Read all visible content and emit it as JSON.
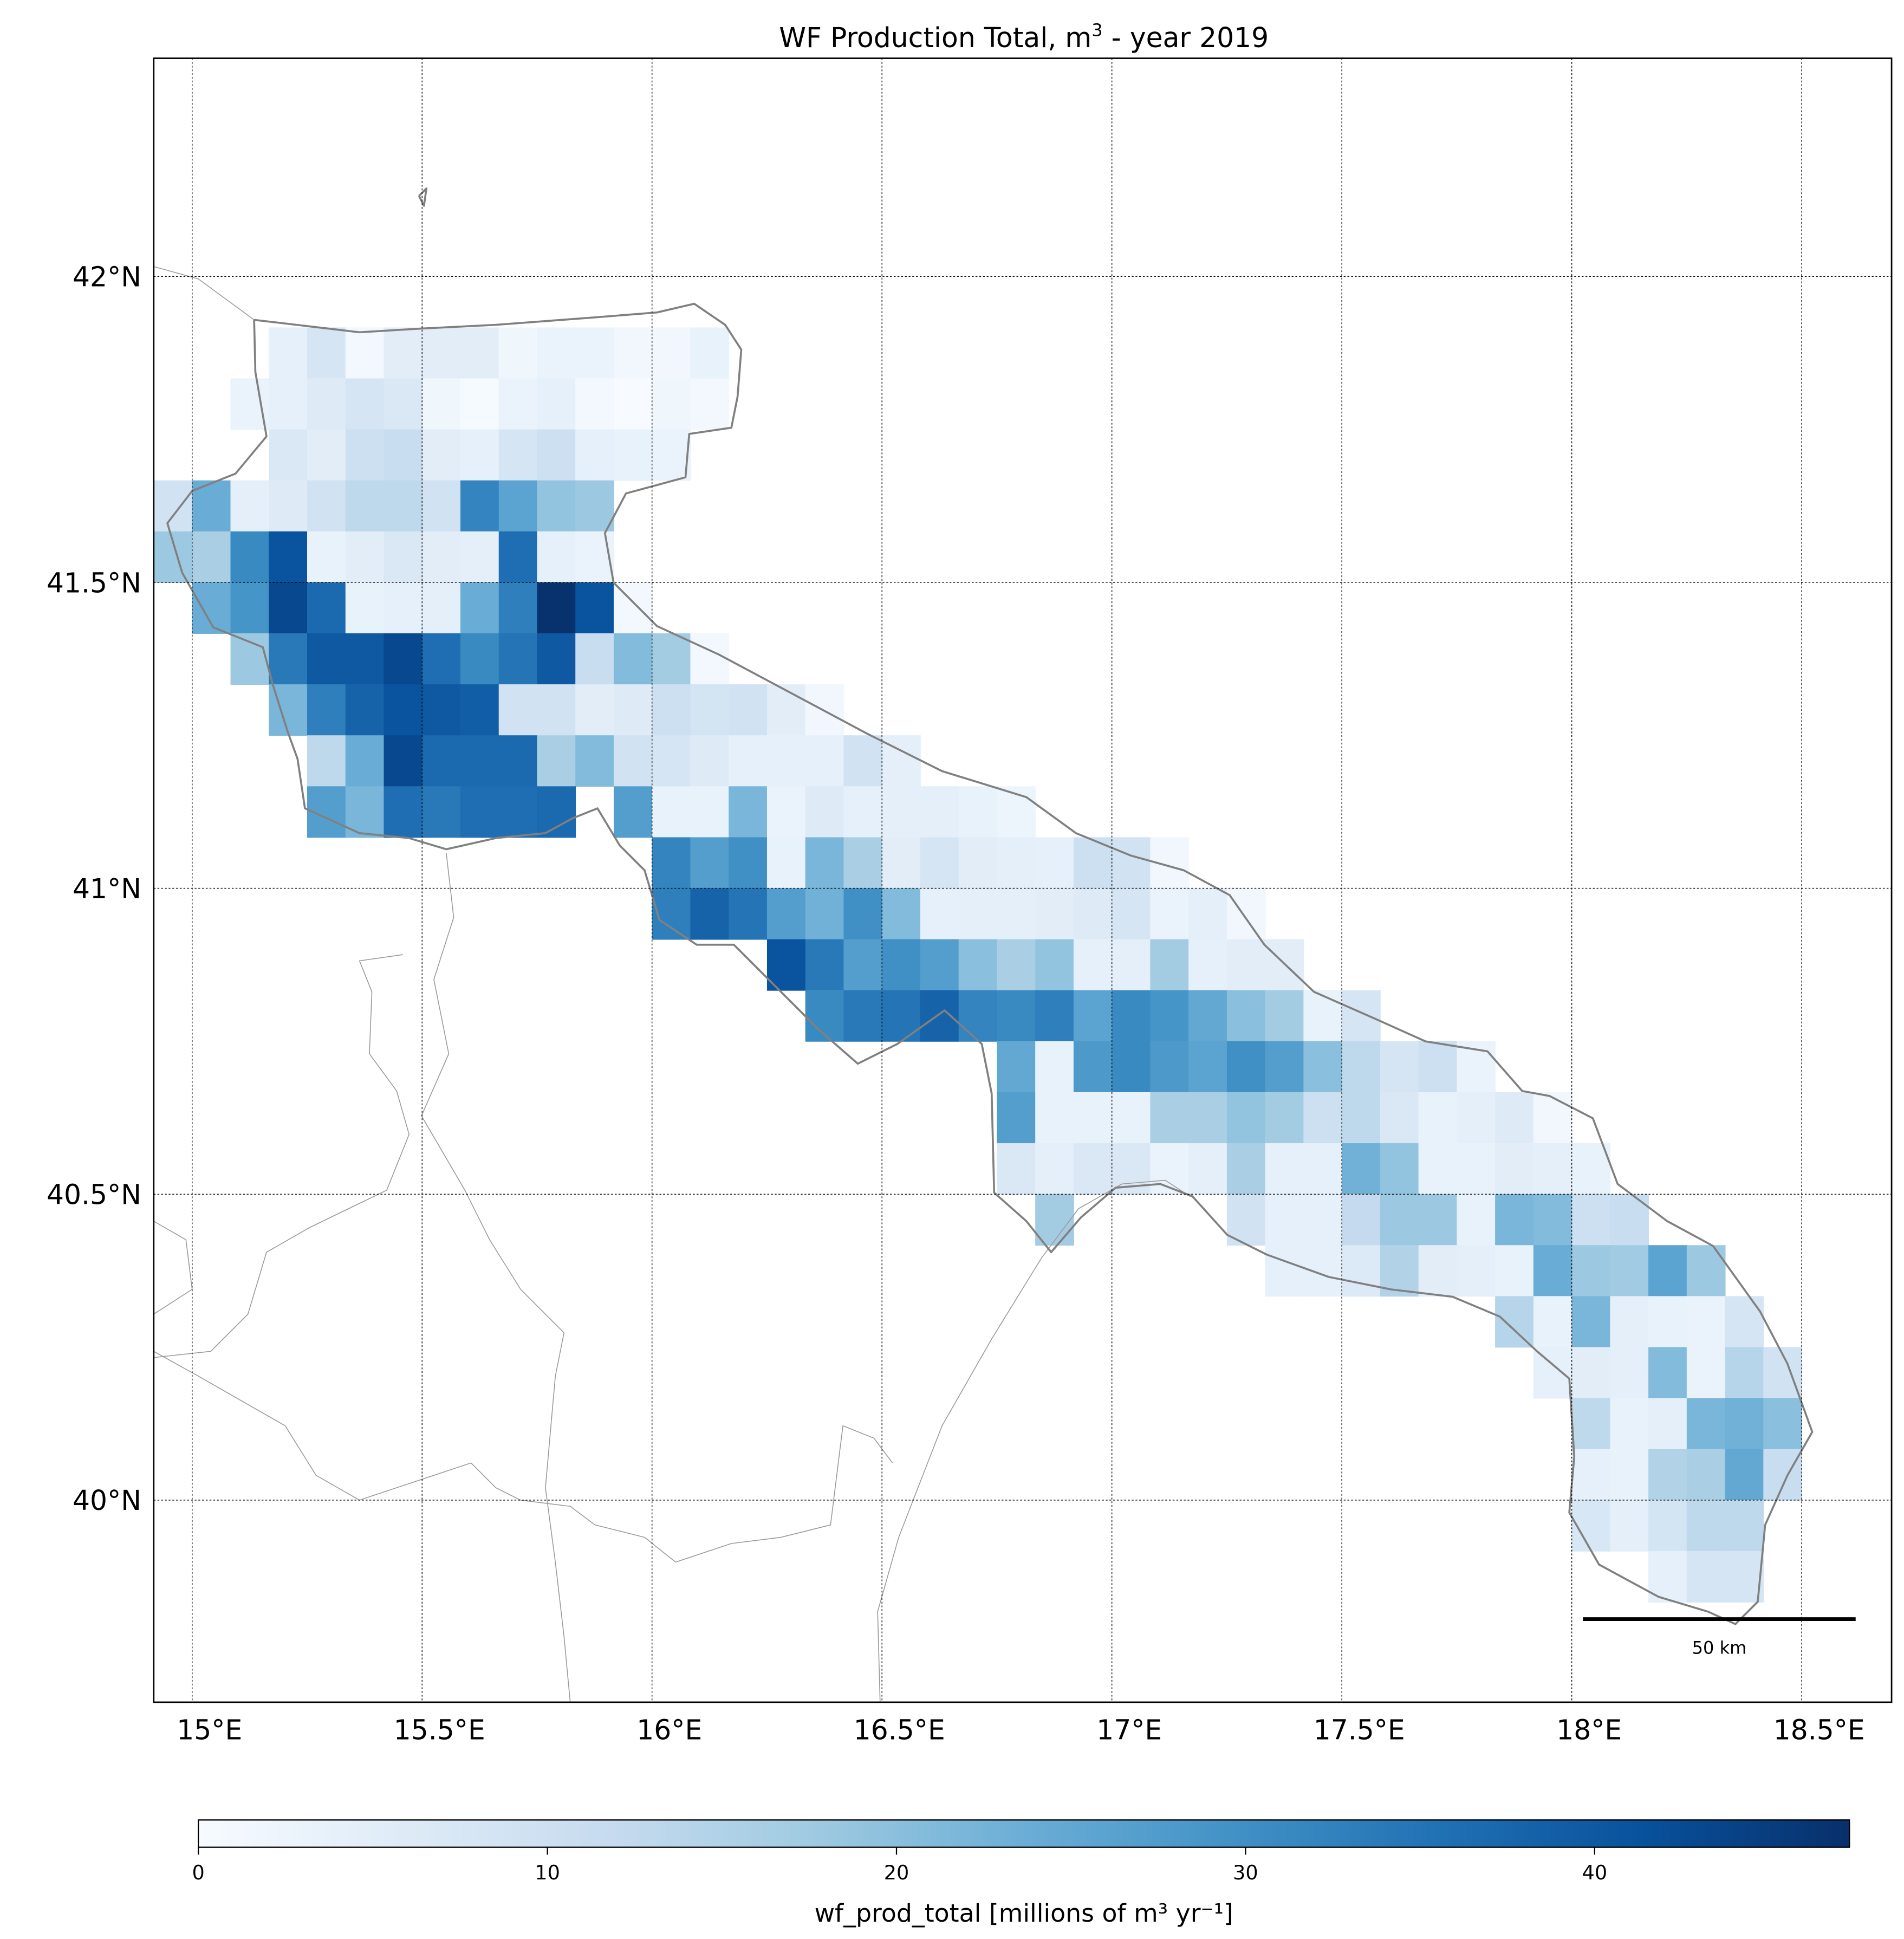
{
  "title": {
    "main": "WF Production Total, m",
    "sup": "3",
    "rest": " - year 2019"
  },
  "x_ticks": [
    {
      "lon": 15.0,
      "label": "15°E"
    },
    {
      "lon": 15.5,
      "label": "15.5°E"
    },
    {
      "lon": 16.0,
      "label": "16°E"
    },
    {
      "lon": 16.5,
      "label": "16.5°E"
    },
    {
      "lon": 17.0,
      "label": "17°E"
    },
    {
      "lon": 17.5,
      "label": "17.5°E"
    },
    {
      "lon": 18.0,
      "label": "18°E"
    },
    {
      "lon": 18.5,
      "label": "18.5°E"
    }
  ],
  "y_ticks": [
    {
      "lat": 42.0,
      "label": "42°N"
    },
    {
      "lat": 41.5,
      "label": "41.5°N"
    },
    {
      "lat": 41.0,
      "label": "41°N"
    },
    {
      "lat": 40.5,
      "label": "40.5°N"
    },
    {
      "lat": 40.0,
      "label": "40°N"
    }
  ],
  "scale_bar": {
    "label": "50 km"
  },
  "colorbar": {
    "label": "wf_prod_total [millions of m³ yr⁻¹]",
    "min": 0,
    "max": 47.3,
    "ticks": [
      {
        "v": 0,
        "label": "0"
      },
      {
        "v": 10,
        "label": "10"
      },
      {
        "v": 20,
        "label": "20"
      },
      {
        "v": 30,
        "label": "30"
      },
      {
        "v": 40,
        "label": "40"
      }
    ],
    "colormap": [
      "#f7fbff",
      "#deebf7",
      "#c6dbef",
      "#9ecae1",
      "#6baed6",
      "#4292c6",
      "#2171b5",
      "#08519c",
      "#08306b"
    ]
  },
  "chart_data": {
    "type": "heatmap",
    "title": "WF Production Total, m3 - year 2019",
    "xlabel": "",
    "ylabel": "",
    "xlim": [
      14.92,
      18.69
    ],
    "ylim": [
      39.64,
      42.36
    ],
    "units": "millions of m³ yr⁻¹",
    "grid": {
      "lat_origin": 41.9167,
      "lon_origin": 14.9167,
      "step_deg": 0.08333
    },
    "rows": [
      {
        "row": 0,
        "col_start": 3,
        "values": [
          4,
          8,
          1,
          5,
          5,
          5,
          2,
          3,
          3,
          1.5,
          1.5,
          3.5
        ]
      },
      {
        "row": 1,
        "col_start": 2,
        "values": [
          3,
          4,
          6,
          8,
          7,
          2,
          0.5,
          3,
          4,
          1,
          0,
          2,
          1
        ]
      },
      {
        "row": 2,
        "col_start": 3,
        "values": [
          7,
          5,
          10,
          11,
          5,
          4,
          8,
          10,
          4,
          3.5,
          3
        ]
      },
      {
        "row": 3,
        "col_start": 0,
        "values": [
          9,
          24,
          4.5,
          6,
          9,
          13,
          13,
          9,
          32,
          26,
          19,
          18
        ]
      },
      {
        "row": 4,
        "col_start": 0,
        "values": [
          18,
          16,
          31,
          41,
          3.5,
          5,
          7,
          5,
          4.5,
          36,
          4,
          3
        ]
      },
      {
        "row": 5,
        "col_start": 1,
        "values": [
          24,
          29,
          43,
          37,
          3.5,
          4,
          4.5,
          24,
          33,
          47,
          41,
          1
        ]
      },
      {
        "row": 6,
        "col_start": 2,
        "values": [
          18,
          34,
          40,
          40,
          43,
          36,
          31,
          35,
          40,
          11,
          21,
          17,
          1
        ]
      },
      {
        "row": 7,
        "col_start": 3,
        "values": [
          22,
          33,
          38,
          41,
          40,
          39,
          9,
          9,
          5,
          6,
          10,
          8.5,
          9,
          5,
          1.5
        ]
      },
      {
        "row": 8,
        "col_start": 4,
        "values": [
          13,
          24,
          43,
          37,
          37,
          37,
          16,
          21,
          9,
          8,
          6,
          4,
          4,
          4,
          9,
          4.5
        ]
      },
      {
        "row": 9,
        "col_start": 4,
        "values": [
          27,
          22,
          36,
          34,
          36,
          36,
          37,
          null,
          27,
          3.5,
          3.5,
          22,
          3,
          6,
          4,
          4.5,
          4.5,
          3.5,
          2.5
        ]
      },
      {
        "row": 10,
        "col_start": 13,
        "values": [
          32,
          27,
          30,
          3.5,
          22,
          16,
          5,
          8,
          5,
          4.5,
          4,
          10,
          9,
          1.5
        ]
      },
      {
        "row": 11,
        "col_start": 13,
        "values": [
          33,
          38,
          35,
          27,
          23,
          30,
          21,
          4,
          4.5,
          4.5,
          5,
          6,
          8,
          3,
          4.5,
          1.5
        ]
      },
      {
        "row": 12,
        "col_start": 16,
        "values": [
          41,
          34,
          27,
          30,
          27,
          20,
          16,
          19,
          4,
          4.5,
          17,
          4,
          5,
          5
        ]
      },
      {
        "row": 13,
        "col_start": 17,
        "values": [
          31,
          34,
          35,
          38,
          32,
          31,
          33,
          26,
          31,
          29,
          25,
          20,
          17,
          3.5,
          8
        ]
      },
      {
        "row": 14,
        "col_start": 22,
        "values": [
          25,
          3.5,
          28,
          31,
          28,
          26,
          30,
          27,
          20,
          13,
          8,
          10,
          3
        ]
      },
      {
        "row": 15,
        "col_start": 22,
        "values": [
          27,
          3.5,
          3.5,
          3.5,
          16,
          16,
          19,
          17,
          10,
          13,
          7,
          3.5,
          4.5,
          6,
          1.5
        ]
      },
      {
        "row": 16,
        "col_start": 22,
        "values": [
          7,
          4.5,
          7,
          7,
          3,
          4.5,
          16,
          4,
          4,
          23,
          19,
          3.5,
          3.5,
          5,
          4.5,
          3.5
        ]
      },
      {
        "row": 17,
        "col_start": 23,
        "values": [
          17,
          null,
          null,
          null,
          null,
          9,
          4,
          4,
          12,
          18,
          18,
          3.5,
          22,
          21,
          10,
          11
        ]
      },
      {
        "row": 18,
        "col_start": 29,
        "values": [
          4,
          4,
          6.5,
          15,
          5,
          4.5,
          3.5,
          24,
          18,
          17.5,
          26,
          18
        ]
      },
      {
        "row": 19,
        "col_start": 35,
        "values": [
          14,
          3.5,
          22,
          4.5,
          3.5,
          3,
          8
        ]
      },
      {
        "row": 20,
        "col_start": 36,
        "values": [
          4,
          5,
          4.5,
          21,
          3,
          14,
          9
        ]
      },
      {
        "row": 21,
        "col_start": 37,
        "values": [
          13,
          3.5,
          4.5,
          22,
          23,
          20
        ]
      },
      {
        "row": 22,
        "col_start": 37,
        "values": [
          4,
          3.5,
          15,
          16,
          25,
          11
        ]
      },
      {
        "row": 23,
        "col_start": 37,
        "values": [
          7.5,
          4.5,
          8.5,
          13,
          13
        ]
      },
      {
        "row": 24,
        "col_start": 39,
        "values": [
          4,
          8,
          8
        ]
      }
    ]
  }
}
